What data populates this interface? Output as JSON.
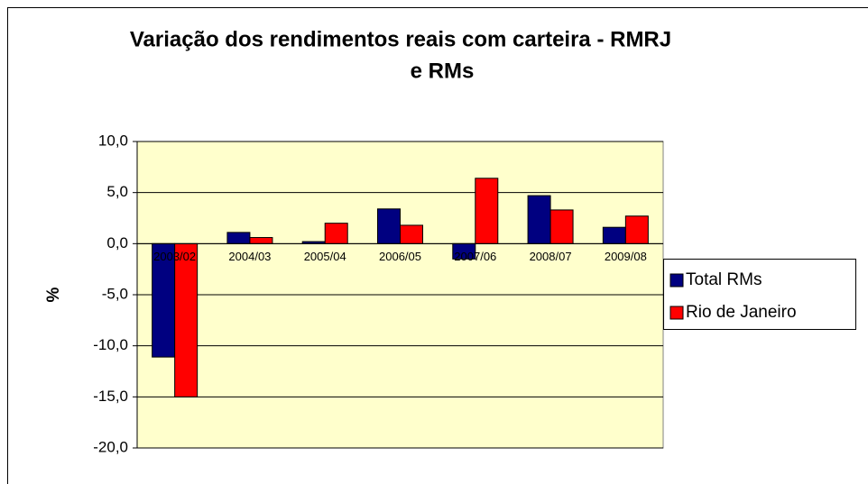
{
  "chart_data": {
    "type": "bar",
    "title": [
      "Variação dos rendimentos reais com carteira - RMRJ",
      "e RMs"
    ],
    "y_label": "%",
    "categories": [
      "2003/02",
      "2004/03",
      "2005/04",
      "2006/05",
      "2007/06",
      "2008/07",
      "2009/08"
    ],
    "series": [
      {
        "name": "Total RMs",
        "color": "#000080",
        "values": [
          -11.1,
          1.1,
          0.2,
          3.4,
          -1.5,
          4.7,
          1.6
        ]
      },
      {
        "name": "Rio de Janeiro",
        "color": "#ff0000",
        "values": [
          -15.0,
          0.6,
          2.0,
          1.8,
          6.4,
          3.3,
          2.7
        ]
      }
    ],
    "ylim": [
      -20,
      10
    ],
    "yticks": [
      {
        "value": 10,
        "label": "10,0"
      },
      {
        "value": 5,
        "label": "5,0"
      },
      {
        "value": 0,
        "label": "0,0"
      },
      {
        "value": -5,
        "label": "-5,0"
      },
      {
        "value": -10,
        "label": "-10,0"
      },
      {
        "value": -15,
        "label": "-15,0"
      },
      {
        "value": -20,
        "label": "-20,0"
      }
    ],
    "grid": true,
    "plot_background": "#ffffcc",
    "legend": "right"
  }
}
